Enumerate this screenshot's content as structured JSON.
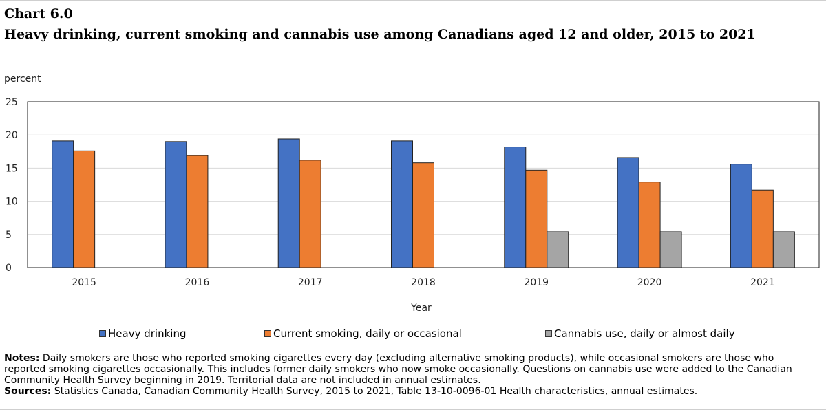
{
  "header": {
    "chart_label": "Chart 6.0",
    "title": "Heavy drinking, current smoking and cannabis use among Canadians aged 12 and older, 2015 to 2021"
  },
  "chart_data": {
    "type": "bar",
    "title": "Heavy drinking, current smoking and cannabis use among Canadians aged 12 and older, 2015 to 2021",
    "xlabel": "Year",
    "ylabel": "percent",
    "ylim": [
      0,
      25
    ],
    "yticks": [
      0,
      5,
      10,
      15,
      20,
      25
    ],
    "grid": true,
    "legend_position": "bottom",
    "categories": [
      "2015",
      "2016",
      "2017",
      "2018",
      "2019",
      "2020",
      "2021"
    ],
    "series": [
      {
        "name": "Heavy drinking",
        "color": "#4472c4",
        "values": [
          19.1,
          19.0,
          19.4,
          19.1,
          18.2,
          16.6,
          15.6
        ]
      },
      {
        "name": "Current smoking, daily or occasional",
        "color": "#ed7d31",
        "values": [
          17.6,
          16.9,
          16.2,
          15.8,
          14.7,
          12.9,
          11.7
        ]
      },
      {
        "name": "Cannabis use, daily or almost daily",
        "color": "#a5a5a5",
        "values": [
          null,
          null,
          null,
          null,
          5.4,
          5.4,
          5.4
        ]
      }
    ]
  },
  "notes": {
    "notes_label": "Notes:",
    "notes_text": "Daily smokers are those who reported smoking cigarettes every day (excluding alternative smoking products), while occasional smokers are those who reported smoking cigarettes occasionally. This includes former daily smokers who now smoke occasionally. Questions on cannabis use were added to the Canadian Community Health Survey beginning in 2019. Territorial data are not included in annual estimates.",
    "sources_label": "Sources:",
    "sources_text": "Statistics Canada, Canadian Community Health Survey, 2015 to 2021, Table 13-10-0096-01 Health characteristics, annual estimates."
  }
}
